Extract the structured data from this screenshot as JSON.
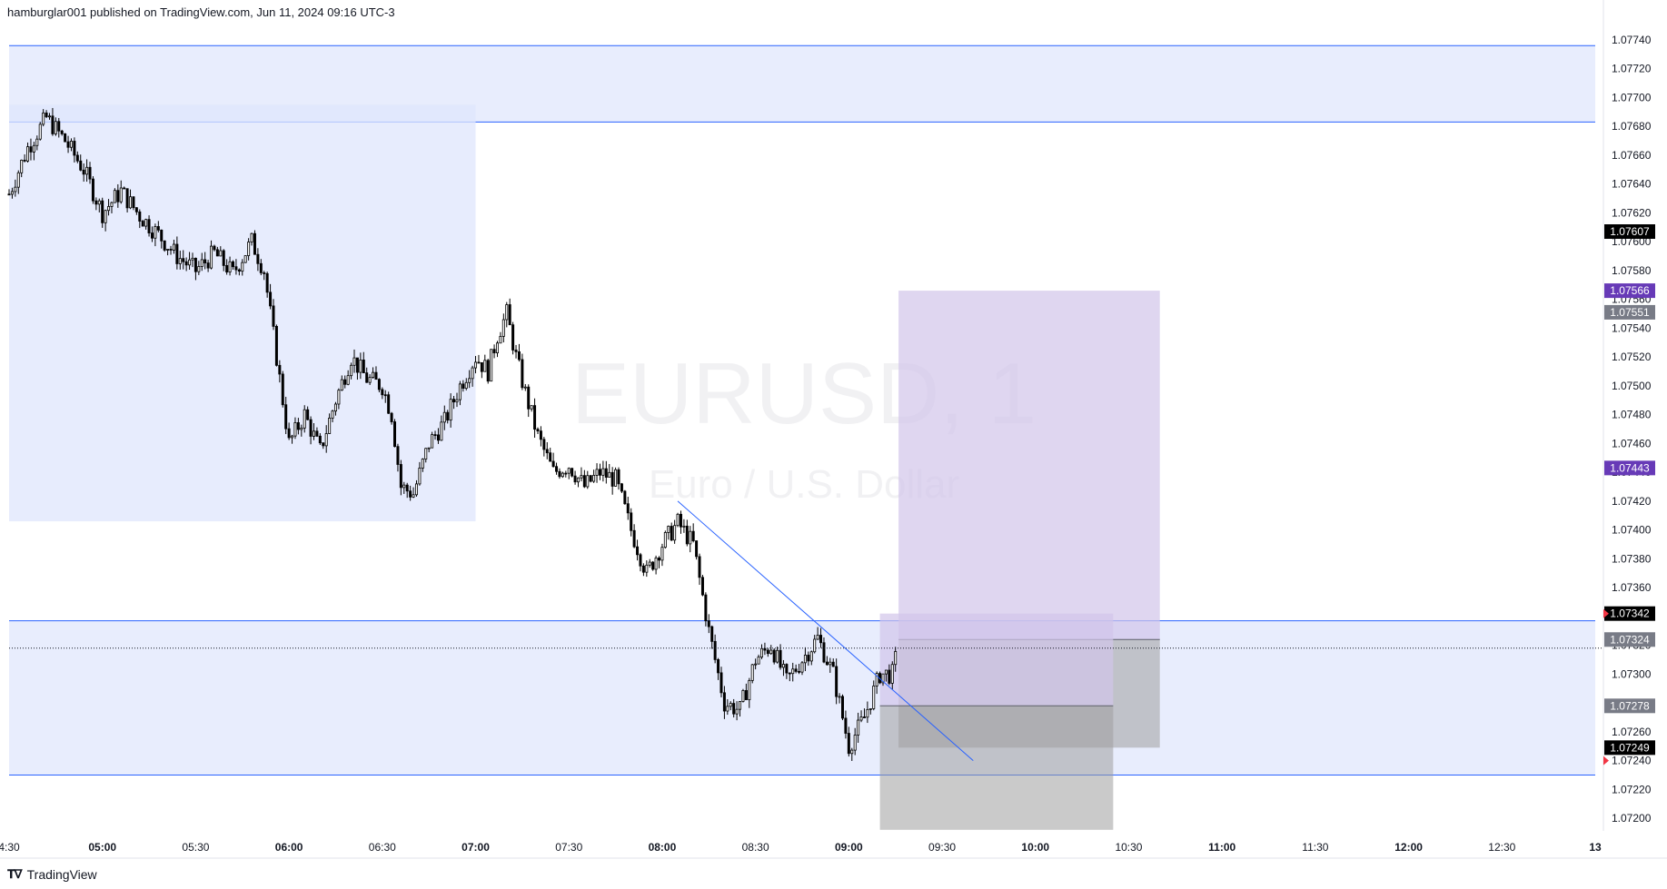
{
  "header": {
    "published_text": "hamburglar001 published on TradingView.com, Jun 11, 2024 09:16 UTC-3"
  },
  "footer": {
    "brand": "TradingView",
    "logo_icon": "tradingview-logo-icon"
  },
  "watermark": {
    "symbol": "EURUSD, 1",
    "description": "Euro / U.S. Dollar"
  },
  "colors": {
    "zone_fill": "#e8edfd",
    "zone_line": "#2962ff",
    "position_profit": "#d1c4e9",
    "position_loss": "#9e9e9e",
    "purple_label": "#673ab7",
    "gray_label": "#787b86",
    "black_label": "#000000",
    "trendline": "#2962ff"
  },
  "chart_data": {
    "type": "candlestick",
    "symbol": "EURUSD",
    "interval": "1",
    "y_axis": {
      "ticks": [
        "1.07740",
        "1.07720",
        "1.07700",
        "1.07680",
        "1.07660",
        "1.07640",
        "1.07620",
        "1.07600",
        "1.07580",
        "1.07560",
        "1.07540",
        "1.07520",
        "1.07500",
        "1.07480",
        "1.07460",
        "1.07440",
        "1.07420",
        "1.07400",
        "1.07380",
        "1.07360",
        "1.07340",
        "1.07320",
        "1.07300",
        "1.07280",
        "1.07260",
        "1.07240",
        "1.07220",
        "1.07200"
      ],
      "range": [
        1.0719,
        1.0775
      ]
    },
    "x_axis": {
      "ticks": [
        {
          "label": "4:30",
          "time": "04:30",
          "bold": false
        },
        {
          "label": "05:00",
          "time": "05:00",
          "bold": true
        },
        {
          "label": "05:30",
          "time": "05:30",
          "bold": false
        },
        {
          "label": "06:00",
          "time": "06:00",
          "bold": true
        },
        {
          "label": "06:30",
          "time": "06:30",
          "bold": false
        },
        {
          "label": "07:00",
          "time": "07:00",
          "bold": true
        },
        {
          "label": "07:30",
          "time": "07:30",
          "bold": false
        },
        {
          "label": "08:00",
          "time": "08:00",
          "bold": true
        },
        {
          "label": "08:30",
          "time": "08:30",
          "bold": false
        },
        {
          "label": "09:00",
          "time": "09:00",
          "bold": true
        },
        {
          "label": "09:30",
          "time": "09:30",
          "bold": false
        },
        {
          "label": "10:00",
          "time": "10:00",
          "bold": true
        },
        {
          "label": "10:30",
          "time": "10:30",
          "bold": false
        },
        {
          "label": "11:00",
          "time": "11:00",
          "bold": true
        },
        {
          "label": "11:30",
          "time": "11:30",
          "bold": false
        },
        {
          "label": "12:00",
          "time": "12:00",
          "bold": true
        },
        {
          "label": "12:30",
          "time": "12:30",
          "bold": false
        },
        {
          "label": "13",
          "time": "13:00",
          "bold": true
        }
      ],
      "range": [
        "04:30",
        "13:00"
      ]
    },
    "price_path": [
      {
        "t": "04:30",
        "p": 1.07633
      },
      {
        "t": "04:36",
        "p": 1.07665
      },
      {
        "t": "04:42",
        "p": 1.07686
      },
      {
        "t": "04:48",
        "p": 1.0767
      },
      {
        "t": "04:54",
        "p": 1.0765
      },
      {
        "t": "05:00",
        "p": 1.0762
      },
      {
        "t": "05:06",
        "p": 1.07635
      },
      {
        "t": "05:12",
        "p": 1.07618
      },
      {
        "t": "05:18",
        "p": 1.07605
      },
      {
        "t": "05:24",
        "p": 1.0759
      },
      {
        "t": "05:30",
        "p": 1.0758
      },
      {
        "t": "05:36",
        "p": 1.07592
      },
      {
        "t": "05:42",
        "p": 1.07578
      },
      {
        "t": "05:48",
        "p": 1.076
      },
      {
        "t": "05:52",
        "p": 1.0758
      },
      {
        "t": "05:56",
        "p": 1.0752
      },
      {
        "t": "06:00",
        "p": 1.0746
      },
      {
        "t": "06:05",
        "p": 1.0748
      },
      {
        "t": "06:10",
        "p": 1.07455
      },
      {
        "t": "06:15",
        "p": 1.0749
      },
      {
        "t": "06:20",
        "p": 1.0752
      },
      {
        "t": "06:25",
        "p": 1.07505
      },
      {
        "t": "06:30",
        "p": 1.075
      },
      {
        "t": "06:33",
        "p": 1.0748
      },
      {
        "t": "06:36",
        "p": 1.0743
      },
      {
        "t": "06:40",
        "p": 1.07425
      },
      {
        "t": "06:45",
        "p": 1.0746
      },
      {
        "t": "06:50",
        "p": 1.07475
      },
      {
        "t": "06:55",
        "p": 1.075
      },
      {
        "t": "07:00",
        "p": 1.0752
      },
      {
        "t": "07:04",
        "p": 1.0751
      },
      {
        "t": "07:07",
        "p": 1.07535
      },
      {
        "t": "07:10",
        "p": 1.0755
      },
      {
        "t": "07:13",
        "p": 1.0752
      },
      {
        "t": "07:16",
        "p": 1.07495
      },
      {
        "t": "07:20",
        "p": 1.07465
      },
      {
        "t": "07:25",
        "p": 1.0744
      },
      {
        "t": "07:30",
        "p": 1.07445
      },
      {
        "t": "07:35",
        "p": 1.0743
      },
      {
        "t": "07:40",
        "p": 1.0744
      },
      {
        "t": "07:45",
        "p": 1.07435
      },
      {
        "t": "07:50",
        "p": 1.074
      },
      {
        "t": "07:55",
        "p": 1.0737
      },
      {
        "t": "08:00",
        "p": 1.0739
      },
      {
        "t": "08:05",
        "p": 1.07405
      },
      {
        "t": "08:10",
        "p": 1.0739
      },
      {
        "t": "08:15",
        "p": 1.0733
      },
      {
        "t": "08:20",
        "p": 1.0728
      },
      {
        "t": "08:25",
        "p": 1.07275
      },
      {
        "t": "08:30",
        "p": 1.0731
      },
      {
        "t": "08:35",
        "p": 1.0732
      },
      {
        "t": "08:40",
        "p": 1.07295
      },
      {
        "t": "08:45",
        "p": 1.0731
      },
      {
        "t": "08:50",
        "p": 1.07325
      },
      {
        "t": "08:55",
        "p": 1.073
      },
      {
        "t": "09:00",
        "p": 1.0725
      },
      {
        "t": "09:05",
        "p": 1.0727
      },
      {
        "t": "09:10",
        "p": 1.073
      },
      {
        "t": "09:14",
        "p": 1.073
      },
      {
        "t": "09:16",
        "p": 1.0732
      }
    ],
    "zones": [
      {
        "name": "upper-demand-zone",
        "from_time": "04:30",
        "to_time": "13:00",
        "top": 1.07736,
        "bottom": 1.07683
      },
      {
        "name": "session-range-box",
        "from_time": "04:30",
        "to_time": "07:00",
        "top": 1.07695,
        "bottom": 1.07406
      },
      {
        "name": "lower-zone",
        "from_time": "04:30",
        "to_time": "13:00",
        "top": 1.07337,
        "bottom": 1.0723
      }
    ],
    "positions": [
      {
        "name": "long-position-1",
        "from_time": "09:16",
        "to_time": "10:40",
        "entry": 1.07324,
        "target": 1.07566,
        "stop": 1.07249
      },
      {
        "name": "long-position-2",
        "from_time": "09:10",
        "to_time": "10:25",
        "entry": 1.07278,
        "target": 1.07342,
        "stop": 1.07192
      }
    ],
    "trendline": {
      "from": {
        "time": "08:05",
        "price": 1.0742
      },
      "to": {
        "time": "09:40",
        "price": 1.0724
      }
    },
    "current_price": 1.07318,
    "price_labels": [
      {
        "value": "1.07607",
        "price": 1.07607,
        "style": "black"
      },
      {
        "value": "1.07566",
        "price": 1.07566,
        "style": "purple"
      },
      {
        "value": "1.07551",
        "price": 1.07551,
        "style": "gray"
      },
      {
        "value": "1.07443",
        "price": 1.07443,
        "style": "purple"
      },
      {
        "value": "1.07342",
        "price": 1.07342,
        "style": "black"
      },
      {
        "value": "1.07324",
        "price": 1.07324,
        "style": "gray"
      },
      {
        "value": "1.07278",
        "price": 1.07278,
        "style": "gray"
      },
      {
        "value": "1.07249",
        "price": 1.07249,
        "style": "black"
      }
    ]
  }
}
